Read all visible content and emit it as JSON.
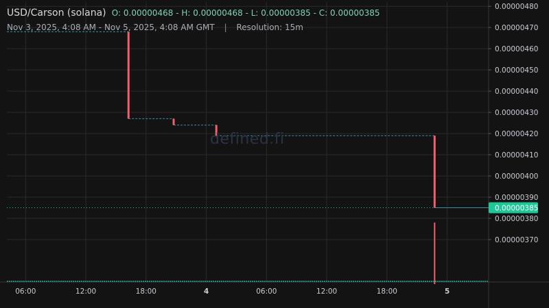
{
  "header": {
    "symbol": "USD/Carson (solana)",
    "ohlc": "O: 0.00000468 - H: 0.00000468 - L: 0.00000385 - C: 0.00000385",
    "range": "Nov 3, 2025, 4:08 AM - Nov 5, 2025, 4:08 AM GMT",
    "separator": "|",
    "resolution": "Resolution: 15m"
  },
  "watermark": "defined.fi",
  "colors": {
    "background": "#131313",
    "grid": "#2a2a2a",
    "down": "#f0616d",
    "up": "#26a69a",
    "flat_line": "#3d8fa0",
    "last_price_tag": "#1fc797",
    "axis_text": "#c8ccd3",
    "volume": "#26a69a"
  },
  "chart_data": {
    "type": "candlestick",
    "title": "USD/Carson (solana)",
    "resolution": "15m",
    "x_range": [
      "2025-11-03T04:08",
      "2025-11-05T04:08"
    ],
    "x_tick_labels": [
      "06:00",
      "12:00",
      "18:00",
      "4",
      "06:00",
      "12:00",
      "18:00",
      "5"
    ],
    "x_ticks": [
      6,
      12,
      18,
      24,
      30,
      36,
      42,
      48
    ],
    "y_tick_labels": [
      "0.00000370",
      "0.00000380",
      "0.00000390",
      "0.00000400",
      "0.00000410",
      "0.00000420",
      "0.00000430",
      "0.00000440",
      "0.00000450",
      "0.00000460",
      "0.00000470",
      "0.00000480"
    ],
    "y_ticks": [
      3.7,
      3.8,
      3.9,
      4.0,
      4.1,
      4.2,
      4.3,
      4.4,
      4.5,
      4.6,
      4.7,
      4.8
    ],
    "y_scale": 1e-06,
    "ylim": [
      3.5,
      4.82
    ],
    "xlim": [
      4.13,
      52.13
    ],
    "levels": [
      {
        "start": 4.13,
        "end": 16.25,
        "value": 4.68
      },
      {
        "start": 16.25,
        "end": 20.75,
        "value": 4.27
      },
      {
        "start": 20.75,
        "end": 25.0,
        "value": 4.24
      },
      {
        "start": 25.0,
        "end": 46.75,
        "value": 4.19
      },
      {
        "start": 46.75,
        "end": 48.0,
        "value": 3.85
      }
    ],
    "moves": [
      {
        "x": 16.25,
        "from": 4.68,
        "to": 4.27
      },
      {
        "x": 20.75,
        "from": 4.27,
        "to": 4.24
      },
      {
        "x": 25.0,
        "from": 4.24,
        "to": 4.19
      },
      {
        "x": 46.75,
        "from": 4.19,
        "to": 3.85
      }
    ],
    "extra_wicks": [
      {
        "x": 46.75,
        "from": 3.78,
        "to": 3.49
      }
    ],
    "last_price": "0.00000385",
    "last_price_value": 3.85,
    "grid": true
  }
}
